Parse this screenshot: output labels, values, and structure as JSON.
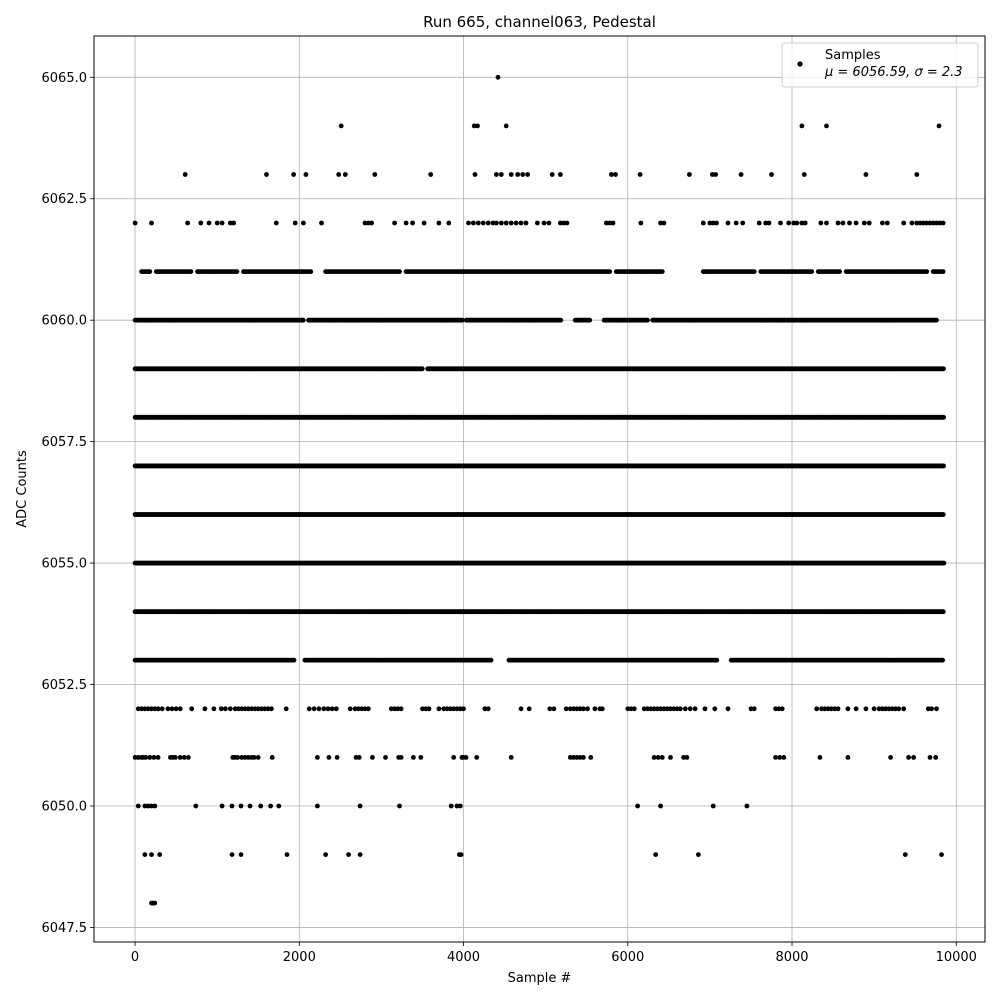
{
  "chart_data": {
    "type": "scatter",
    "title": "Run 665, channel063, Pedestal",
    "xlabel": "Sample #",
    "ylabel": "ADC Counts",
    "xlim": [
      -500,
      10350
    ],
    "ylim": [
      6047.2,
      6065.85
    ],
    "x_ticks": [
      0,
      2000,
      4000,
      6000,
      8000,
      10000
    ],
    "y_ticks": [
      6047.5,
      6050.0,
      6052.5,
      6055.0,
      6057.5,
      6060.0,
      6062.5,
      6065.0
    ],
    "grid": true,
    "legend_position": "top-right",
    "legend": {
      "label": "Samples",
      "stats": "μ = 6056.59, σ = 2.3"
    },
    "series": [
      {
        "name": "Samples",
        "color": "#000000",
        "runs": [
          {
            "y": 6048,
            "x": [
              200,
              210,
              230,
              240
            ]
          },
          {
            "y": 6049,
            "x": [
              120,
              200,
              300,
              1180,
              1290,
              1850,
              2320,
              2600,
              2740,
              3950,
              3970,
              6340,
              6860,
              9380,
              9820
            ]
          },
          {
            "y": 6050,
            "x": [
              40,
              120,
              160,
              200,
              240,
              740,
              1060,
              1180,
              1290,
              1400,
              1530,
              1650,
              1750,
              2220,
              2740,
              3220,
              3850,
              3920,
              3960,
              6120,
              6400,
              7040,
              7450
            ]
          },
          {
            "y": 6051,
            "x": [
              0,
              40,
              80,
              100,
              130,
              180,
              230,
              280,
              430,
              460,
              490,
              550,
              600,
              650,
              1190,
              1220,
              1250,
              1300,
              1340,
              1380,
              1420,
              1450,
              1500,
              1670,
              2220,
              2360,
              2460,
              2690,
              2730,
              2890,
              3050,
              3210,
              3240,
              3390,
              3480,
              3880,
              3980,
              4000,
              4030,
              4160,
              4580,
              5300,
              5340,
              5380,
              5420,
              5460,
              5550,
              6320,
              6370,
              6420,
              6520,
              6680,
              6720,
              7800,
              7850,
              7900,
              8340,
              8680,
              9200,
              9420,
              9480,
              9680,
              9750
            ]
          },
          {
            "y": 6052,
            "x": [
              40,
              80,
              120,
              160,
              200,
              240,
              280,
              330,
              400,
              450,
              500,
              550,
              690,
              850,
              960,
              1050,
              1100,
              1160,
              1220,
              1260,
              1300,
              1340,
              1380,
              1420,
              1460,
              1500,
              1540,
              1580,
              1620,
              1660,
              1840,
              2120,
              2180,
              2240,
              2300,
              2350,
              2400,
              2450,
              2620,
              2680,
              2720,
              2760,
              2800,
              2840,
              3120,
              3160,
              3200,
              3240,
              3500,
              3540,
              3580,
              3700,
              3760,
              3800,
              3840,
              3880,
              3920,
              3960,
              4000,
              4260,
              4300,
              4700,
              4800,
              5050,
              5100,
              5250,
              5300,
              5340,
              5380,
              5420,
              5460,
              5510,
              5600,
              5660,
              5690,
              6000,
              6040,
              6080,
              6200,
              6240,
              6280,
              6320,
              6360,
              6400,
              6440,
              6480,
              6520,
              6560,
              6600,
              6640,
              6700,
              6760,
              6820,
              6940,
              7060,
              7220,
              7500,
              7540,
              7800,
              7840,
              7880,
              8300,
              8360,
              8400,
              8440,
              8480,
              8520,
              8560,
              8680,
              8780,
              8900,
              9000,
              9060,
              9100,
              9140,
              9180,
              9220,
              9260,
              9300,
              9360,
              9660,
              9700,
              9760
            ]
          },
          {
            "y": 6062,
            "x": [
              0,
              200,
              640,
              800,
              900,
              1000,
              1060,
              1160,
              1200,
              1720,
              1950,
              2050,
              2270,
              2800,
              2840,
              2880,
              3160,
              3300,
              3380,
              3520,
              3700,
              3820,
              4060,
              4120,
              4180,
              4240,
              4300,
              4360,
              4400,
              4460,
              4520,
              4580,
              4640,
              4700,
              4760,
              4900,
              4980,
              5040,
              5180,
              5220,
              5260,
              5740,
              5780,
              5820,
              6160,
              6400,
              6440,
              6920,
              7000,
              7040,
              7080,
              7220,
              7320,
              7400,
              7600,
              7680,
              7720,
              7860,
              7960,
              8020,
              8060,
              8120,
              8160,
              8350,
              8420,
              8560,
              8620,
              8700,
              8780,
              8880,
              8940,
              9100,
              9160,
              9360,
              9460,
              9520,
              9560,
              9600,
              9640,
              9680,
              9720,
              9760,
              9800,
              9840
            ]
          },
          {
            "y": 6063,
            "x": [
              610,
              1600,
              1930,
              2080,
              2480,
              2560,
              2920,
              3600,
              4140,
              4400,
              4460,
              4580,
              4660,
              4720,
              4780,
              5080,
              5180,
              5800,
              5850,
              6150,
              6750,
              7030,
              7070,
              7380,
              7750,
              8150,
              8900,
              9520
            ]
          },
          {
            "y": 6064,
            "x": [
              2510,
              4130,
              4170,
              4520,
              8120,
              8420,
              9790
            ]
          },
          {
            "y": 6065,
            "x": [
              4420
            ]
          }
        ],
        "bands": [
          {
            "y": 6053,
            "from": 0,
            "to": 9850,
            "step": 22,
            "gaps": [
              [
                1950,
                2050
              ],
              [
                4350,
                4550
              ],
              [
                7100,
                7250
              ]
            ]
          },
          {
            "y": 6054,
            "from": 0,
            "to": 9850,
            "step": 14,
            "gaps": []
          },
          {
            "y": 6055,
            "from": 0,
            "to": 9850,
            "step": 10,
            "gaps": []
          },
          {
            "y": 6056,
            "from": 0,
            "to": 9850,
            "step": 13,
            "gaps": []
          },
          {
            "y": 6057,
            "from": 0,
            "to": 9850,
            "step": 9,
            "gaps": []
          },
          {
            "y": 6058,
            "from": 0,
            "to": 9850,
            "step": 9,
            "gaps": []
          },
          {
            "y": 6059,
            "from": 0,
            "to": 9850,
            "step": 11,
            "gaps": [
              [
                3500,
                3560
              ]
            ]
          },
          {
            "y": 6060,
            "from": 0,
            "to": 9760,
            "step": 16,
            "gaps": [
              [
                2060,
                2100
              ],
              [
                4000,
                4020
              ],
              [
                5200,
                5350
              ],
              [
                5550,
                5700
              ],
              [
                6250,
                6300
              ]
            ]
          },
          {
            "y": 6061,
            "from": 80,
            "to": 9850,
            "step": 20,
            "gaps": [
              [
                200,
                250
              ],
              [
                700,
                740
              ],
              [
                1260,
                1300
              ],
              [
                2150,
                2300
              ],
              [
                3230,
                3280
              ],
              [
                5800,
                5850
              ],
              [
                6440,
                6900
              ],
              [
                7550,
                7600
              ],
              [
                8250,
                8300
              ],
              [
                8600,
                8650
              ],
              [
                9650,
                9700
              ]
            ]
          }
        ]
      }
    ]
  }
}
